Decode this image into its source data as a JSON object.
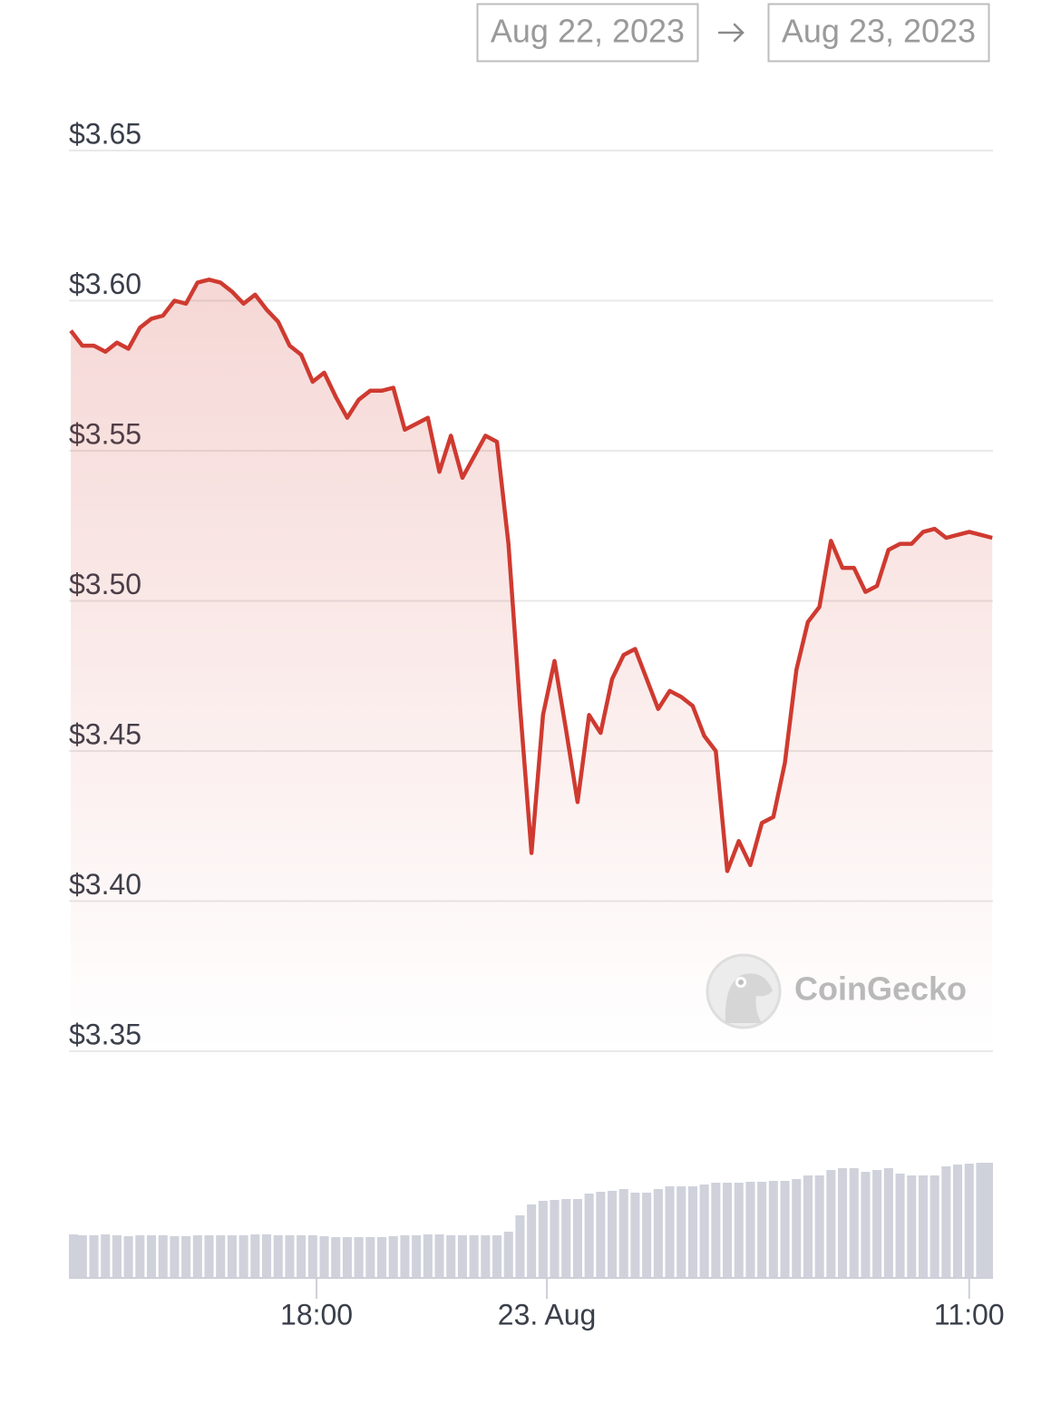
{
  "date_range": {
    "from": "Aug 22, 2023",
    "to": "Aug 23, 2023"
  },
  "watermark": "CoinGecko",
  "chart_data": [
    {
      "type": "line",
      "x": [
        11.6,
        11.9,
        12.2,
        12.5,
        12.8,
        13.1,
        13.4,
        13.7,
        14.0,
        14.3,
        14.6,
        14.9,
        15.2,
        15.5,
        15.8,
        16.1,
        16.4,
        16.7,
        17.0,
        17.3,
        17.6,
        17.9,
        18.2,
        18.5,
        18.8,
        19.1,
        19.4,
        19.7,
        20.0,
        20.3,
        20.6,
        20.9,
        21.2,
        21.5,
        21.8,
        22.1,
        22.4,
        22.7,
        23.0,
        23.3,
        23.6,
        23.9,
        24.2,
        24.5,
        24.8,
        25.1,
        25.4,
        25.7,
        26.0,
        26.3,
        26.6,
        26.9,
        27.2,
        27.5,
        27.8,
        28.1,
        28.4,
        28.7,
        29.0,
        29.3,
        29.6,
        29.9,
        30.2,
        30.5,
        30.8,
        31.1,
        31.4,
        31.7,
        32.0,
        32.3,
        32.6,
        32.9,
        33.2,
        33.5,
        33.8,
        34.1,
        34.4,
        34.7,
        35.0,
        35.3,
        35.6
      ],
      "series": [
        {
          "color": "#cf3a30",
          "values": [
            3.59,
            3.585,
            3.585,
            3.583,
            3.586,
            3.584,
            3.591,
            3.594,
            3.595,
            3.6,
            3.599,
            3.606,
            3.607,
            3.606,
            3.603,
            3.599,
            3.602,
            3.597,
            3.593,
            3.585,
            3.582,
            3.573,
            3.576,
            3.568,
            3.561,
            3.567,
            3.57,
            3.57,
            3.571,
            3.557,
            3.559,
            3.561,
            3.543,
            3.555,
            3.541,
            3.548,
            3.555,
            3.553,
            3.519,
            3.465,
            3.416,
            3.462,
            3.48,
            3.457,
            3.433,
            3.462,
            3.456,
            3.474,
            3.482,
            3.484,
            3.474,
            3.464,
            3.47,
            3.468,
            3.465,
            3.455,
            3.45,
            3.41,
            3.42,
            3.412,
            3.426,
            3.428,
            3.446,
            3.477,
            3.493,
            3.498,
            3.52,
            3.511,
            3.511,
            3.503,
            3.505,
            3.517,
            3.519,
            3.519,
            3.523,
            3.524,
            3.521,
            3.522,
            3.523,
            3.522,
            3.521
          ]
        }
      ],
      "xlim": [
        11.55,
        35.62
      ],
      "ylim": [
        3.35,
        3.65
      ],
      "yticks": [
        {
          "value": 3.35,
          "label": "$3.35"
        },
        {
          "value": 3.4,
          "label": "$3.40"
        },
        {
          "value": 3.45,
          "label": "$3.45"
        },
        {
          "value": 3.5,
          "label": "$3.50"
        },
        {
          "value": 3.55,
          "label": "$3.55"
        },
        {
          "value": 3.6,
          "label": "$3.60"
        },
        {
          "value": 3.65,
          "label": "$3.65"
        }
      ],
      "grid": true
    },
    {
      "type": "bar",
      "x": [
        11.6,
        11.9,
        12.2,
        12.5,
        12.8,
        13.1,
        13.4,
        13.7,
        14.0,
        14.3,
        14.6,
        14.9,
        15.2,
        15.5,
        15.8,
        16.1,
        16.4,
        16.7,
        17.0,
        17.3,
        17.6,
        17.9,
        18.2,
        18.5,
        18.8,
        19.1,
        19.4,
        19.7,
        20.0,
        20.3,
        20.6,
        20.9,
        21.2,
        21.5,
        21.8,
        22.1,
        22.4,
        22.7,
        23.0,
        23.3,
        23.6,
        23.9,
        24.2,
        24.5,
        24.8,
        25.1,
        25.4,
        25.7,
        26.0,
        26.3,
        26.6,
        26.9,
        27.2,
        27.5,
        27.8,
        28.1,
        28.4,
        28.7,
        29.0,
        29.3,
        29.6,
        29.9,
        30.2,
        30.5,
        30.8,
        31.1,
        31.4,
        31.7,
        32.0,
        32.3,
        32.6,
        32.9,
        33.2,
        33.5,
        33.8,
        34.1,
        34.4,
        34.7,
        35.0,
        35.3,
        35.6
      ],
      "values": [
        47,
        46,
        46,
        47,
        46,
        45,
        46,
        46,
        46,
        45,
        45,
        46,
        46,
        46,
        46,
        46,
        47,
        47,
        46,
        46,
        46,
        46,
        45,
        44,
        44,
        44,
        44,
        44,
        45,
        46,
        46,
        47,
        47,
        46,
        46,
        46,
        46,
        46,
        50,
        68,
        80,
        84,
        85,
        86,
        86,
        92,
        94,
        95,
        97,
        93,
        93,
        97,
        100,
        100,
        100,
        102,
        104,
        104,
        104,
        105,
        105,
        106,
        106,
        108,
        112,
        112,
        118,
        120,
        120,
        116,
        118,
        120,
        114,
        112,
        112,
        112,
        122,
        124,
        125,
        126,
        126
      ],
      "color": "#cfd2db",
      "xlim": [
        11.55,
        35.62
      ],
      "ylim": [
        0,
        140
      ],
      "xticks": [
        {
          "value": 18,
          "label": "18:00"
        },
        {
          "value": 24,
          "label": "23. Aug"
        },
        {
          "value": 35,
          "label": "11:00"
        }
      ]
    }
  ]
}
